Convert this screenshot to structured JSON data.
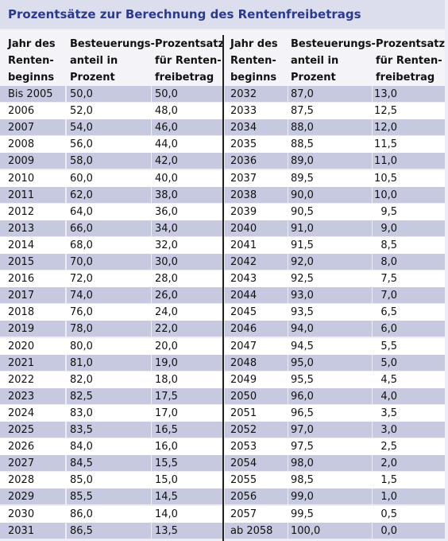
{
  "title": "Prozentsätze zur Berechnung des Rentenfreibetrags",
  "table": {
    "headers": [
      [
        "Jahr des",
        "Renten-",
        "beginns"
      ],
      [
        "Besteuerungs-",
        "anteil in",
        "Prozent"
      ],
      [
        "Prozentsatz",
        "für Renten-",
        "freibetrag"
      ],
      [
        "Jahr des",
        "Renten-",
        "beginns"
      ],
      [
        "Besteuerungs-",
        "anteil in",
        "Prozent"
      ],
      [
        "Prozentsatz",
        "für Renten-",
        "freibetrag"
      ]
    ],
    "rows": [
      [
        "Bis 2005",
        "50,0",
        "50,0",
        "2032",
        "87,0",
        "13,0"
      ],
      [
        "2006",
        "52,0",
        "48,0",
        "2033",
        "87,5",
        "12,5"
      ],
      [
        "2007",
        "54,0",
        "46,0",
        "2034",
        "88,0",
        "12,0"
      ],
      [
        "2008",
        "56,0",
        "44,0",
        "2035",
        "88,5",
        "11,5"
      ],
      [
        "2009",
        "58,0",
        "42,0",
        "2036",
        "89,0",
        "11,0"
      ],
      [
        "2010",
        "60,0",
        "40,0",
        "2037",
        "89,5",
        "10,5"
      ],
      [
        "2011",
        "62,0",
        "38,0",
        "2038",
        "90,0",
        "10,0"
      ],
      [
        "2012",
        "64,0",
        "36,0",
        "2039",
        "90,5",
        "9,5"
      ],
      [
        "2013",
        "66,0",
        "34,0",
        "2040",
        "91,0",
        "9,0"
      ],
      [
        "2014",
        "68,0",
        "32,0",
        "2041",
        "91,5",
        "8,5"
      ],
      [
        "2015",
        "70,0",
        "30,0",
        "2042",
        "92,0",
        "8,0"
      ],
      [
        "2016",
        "72,0",
        "28,0",
        "2043",
        "92,5",
        "7,5"
      ],
      [
        "2017",
        "74,0",
        "26,0",
        "2044",
        "93,0",
        "7,0"
      ],
      [
        "2018",
        "76,0",
        "24,0",
        "2045",
        "93,5",
        "6,5"
      ],
      [
        "2019",
        "78,0",
        "22,0",
        "2046",
        "94,0",
        "6,0"
      ],
      [
        "2020",
        "80,0",
        "20,0",
        "2047",
        "94,5",
        "5,5"
      ],
      [
        "2021",
        "81,0",
        "19,0",
        "2048",
        "95,0",
        "5,0"
      ],
      [
        "2022",
        "82,0",
        "18,0",
        "2049",
        "95,5",
        "4,5"
      ],
      [
        "2023",
        "82,5",
        "17,5",
        "2050",
        "96,0",
        "4,0"
      ],
      [
        "2024",
        "83,0",
        "17,0",
        "2051",
        "96,5",
        "3,5"
      ],
      [
        "2025",
        "83,5",
        "16,5",
        "2052",
        "97,0",
        "3,0"
      ],
      [
        "2026",
        "84,0",
        "16,0",
        "2053",
        "97,5",
        "2,5"
      ],
      [
        "2027",
        "84,5",
        "15,5",
        "2054",
        "98,0",
        "2,0"
      ],
      [
        "2028",
        "85,0",
        "15,0",
        "2055",
        "98,5",
        "1,5"
      ],
      [
        "2029",
        "85,5",
        "14,5",
        "2056",
        "99,0",
        "1,0"
      ],
      [
        "2030",
        "86,0",
        "14,0",
        "2057",
        "99,5",
        "0,5"
      ],
      [
        "2031",
        "86,5",
        "13,5",
        "ab 2058",
        "100,0",
        "0,0"
      ]
    ]
  }
}
